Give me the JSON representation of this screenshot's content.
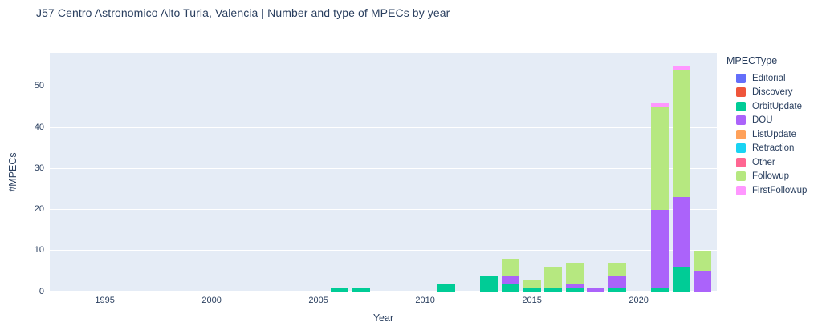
{
  "title": "J57 Centro Astronomico Alto Turia, Valencia | Number and type of MPECs by year",
  "colors": {
    "plot_bg": "#e5ecf6",
    "grid": "#ffffff",
    "text": "#2a3f5f"
  },
  "legend": {
    "title": "MPECType"
  },
  "chart_data": {
    "type": "bar",
    "stacked": true,
    "title": "J57 Centro Astronomico Alto Turia, Valencia | Number and type of MPECs by year",
    "xlabel": "Year",
    "ylabel": "#MPECs",
    "legend_position": "right",
    "grid": true,
    "x_range": [
      1992.42,
      2023.66
    ],
    "y_range": [
      0,
      58.2
    ],
    "x_ticks": [
      1995,
      2000,
      2005,
      2010,
      2015,
      2020
    ],
    "y_ticks": [
      0,
      10,
      20,
      30,
      40,
      50
    ],
    "categories": [
      2006,
      2007,
      2011,
      2013,
      2014,
      2015,
      2016,
      2017,
      2018,
      2019,
      2021,
      2022,
      2023
    ],
    "series": [
      {
        "name": "Editorial",
        "color": "#636EFA",
        "values": [
          0,
          0,
          0,
          0,
          0,
          0,
          0,
          0,
          0,
          0,
          0,
          0,
          0
        ]
      },
      {
        "name": "Discovery",
        "color": "#EF553B",
        "values": [
          0,
          0,
          0,
          0,
          0,
          0,
          0,
          0,
          0,
          0,
          0,
          0,
          0
        ]
      },
      {
        "name": "OrbitUpdate",
        "color": "#00CC96",
        "values": [
          1,
          1,
          2,
          4,
          2,
          1,
          1,
          1,
          0,
          1,
          1,
          6,
          0
        ]
      },
      {
        "name": "DOU",
        "color": "#AB63FA",
        "values": [
          0,
          0,
          0,
          0,
          2,
          0,
          0,
          1,
          1,
          3,
          19,
          17,
          5
        ]
      },
      {
        "name": "ListUpdate",
        "color": "#FFA15A",
        "values": [
          0,
          0,
          0,
          0,
          0,
          0,
          0,
          0,
          0,
          0,
          0,
          0,
          0
        ]
      },
      {
        "name": "Retraction",
        "color": "#19D3F3",
        "values": [
          0,
          0,
          0,
          0,
          0,
          0,
          0,
          0,
          0,
          0,
          0,
          0,
          0
        ]
      },
      {
        "name": "Other",
        "color": "#FF6692",
        "values": [
          0,
          0,
          0,
          0,
          0,
          0,
          0,
          0,
          0,
          0,
          0,
          0,
          0
        ]
      },
      {
        "name": "Followup",
        "color": "#B6E880",
        "values": [
          0,
          0,
          0,
          0,
          4,
          2,
          5,
          5,
          0,
          3,
          25,
          31,
          5
        ]
      },
      {
        "name": "FirstFollowup",
        "color": "#FF97FF",
        "values": [
          0,
          0,
          0,
          0,
          0,
          0,
          0,
          0,
          0,
          0,
          1,
          1,
          0
        ]
      }
    ],
    "totals_by_category": [
      1,
      1,
      2,
      4,
      8,
      3,
      6,
      7,
      1,
      7,
      46,
      55,
      10
    ]
  }
}
